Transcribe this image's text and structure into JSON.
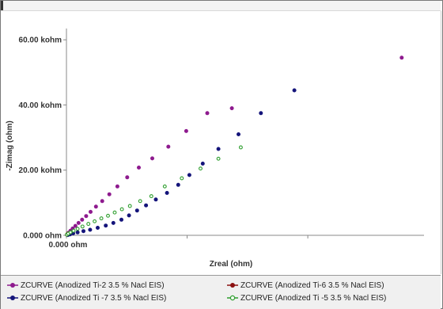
{
  "chart_data": {
    "type": "scatter",
    "title": "",
    "xlabel": "Zreal (ohm)",
    "ylabel": "-Zimag (ohm)",
    "x_ticks_shown": [
      "0.000 ohm"
    ],
    "y_ticks": [
      {
        "value": 0,
        "label": "0.000 ohm"
      },
      {
        "value": 20000,
        "label": "20.00 kohm"
      },
      {
        "value": 40000,
        "label": "40.00 kohm"
      },
      {
        "value": 60000,
        "label": "60.00 kohm"
      }
    ],
    "xlim": [
      0,
      80000
    ],
    "ylim": [
      0,
      62000
    ],
    "grid": false,
    "legend_position": "bottom",
    "series": [
      {
        "name": "ZCURVE (Anodized Ti-2 3.5 % Nacl EIS)",
        "color": "#8e1a8e",
        "x": [
          200,
          500,
          900,
          1400,
          2000,
          2700,
          3500,
          4400,
          5400,
          6600,
          8000,
          9600,
          11400,
          13600,
          16200,
          19200,
          22800,
          26800,
          31500,
          37000,
          75000
        ],
        "y": [
          300,
          800,
          1400,
          2100,
          2900,
          3800,
          4800,
          5900,
          7200,
          8800,
          10500,
          12600,
          15000,
          17800,
          20800,
          23600,
          27200,
          32000,
          37500,
          39000,
          54500
        ]
      },
      {
        "name": "ZCURVE (Anodized Ti-6 3.5 % Nacl EIS)",
        "color": "#8b1010",
        "x": [
          100,
          300
        ],
        "y": [
          200,
          500
        ]
      },
      {
        "name": "ZCURVE (Anodized Ti -7  3.5 %  Nacl EIS)",
        "color": "#14147a",
        "x": [
          300,
          800,
          1500,
          2500,
          3800,
          5300,
          7000,
          8800,
          10500,
          12300,
          14000,
          15800,
          17800,
          20000,
          22500,
          25000,
          27500,
          30500,
          34000,
          38500,
          43500,
          51000
        ],
        "y": [
          100,
          300,
          600,
          900,
          1300,
          1700,
          2300,
          3000,
          3800,
          4800,
          6100,
          7600,
          9200,
          11000,
          13000,
          15500,
          18500,
          22000,
          26500,
          31000,
          37500,
          44500
        ]
      },
      {
        "name": "ZCURVE (Anodized Ti -5 3.5 %  Nacl EIS)",
        "color": "#2e9e2e",
        "x": [
          100,
          400,
          900,
          1600,
          2500,
          3600,
          4900,
          6300,
          7800,
          9300,
          10800,
          12400,
          14200,
          16500,
          19000,
          22000,
          25800,
          30000,
          34000,
          39000
        ],
        "y": [
          200,
          500,
          900,
          1400,
          2000,
          2700,
          3500,
          4300,
          5200,
          6000,
          7000,
          8000,
          9000,
          10500,
          12000,
          15000,
          17500,
          20500,
          23500,
          27000
        ]
      }
    ]
  },
  "legend": {
    "items": [
      {
        "label": "ZCURVE (Anodized Ti-2 3.5 % Nacl EIS)",
        "color": "#8e1a8e"
      },
      {
        "label": "ZCURVE (Anodized Ti-6 3.5 % Nacl EIS)",
        "color": "#8b1010"
      },
      {
        "label": "ZCURVE (Anodized Ti -7  3.5 %  Nacl EIS)",
        "color": "#14147a"
      },
      {
        "label": "ZCURVE (Anodized Ti -5 3.5 %  Nacl EIS)",
        "color": "#2e9e2e"
      }
    ]
  }
}
